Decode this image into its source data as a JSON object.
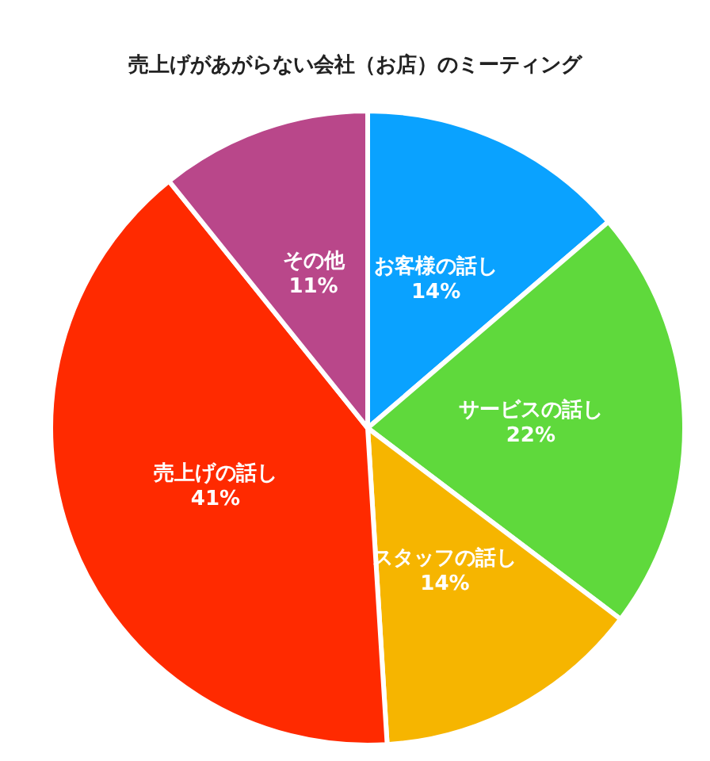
{
  "chart_data": {
    "type": "pie",
    "title": "売上げがあがらない会社（お店）のミーティング",
    "categories": [
      "お客様の話し",
      "サービスの話し",
      "スタッフの話し",
      "売上げの話し",
      "その他"
    ],
    "values": [
      14,
      22,
      14,
      41,
      11
    ],
    "value_labels": [
      "14%",
      "22%",
      "14%",
      "41%",
      "11%"
    ],
    "colors": [
      "#0aa2ff",
      "#5fd93c",
      "#f6b500",
      "#ff2a00",
      "#b9478a"
    ]
  }
}
